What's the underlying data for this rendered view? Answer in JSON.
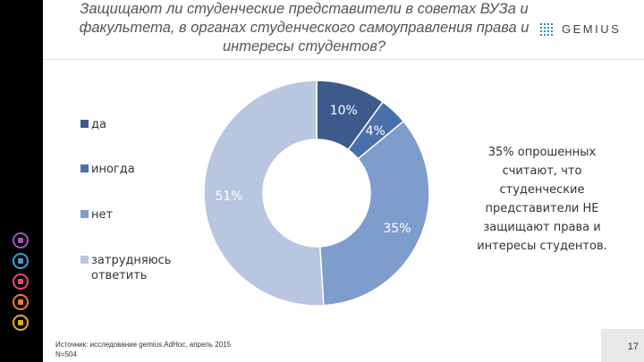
{
  "header": {
    "title": "Защищают ли студенческие представители в советах ВУЗа и факультета, в органах студенческого самоуправления права и интересы студентов?",
    "logo_text": "GEMIUS"
  },
  "sidebar": {
    "icons": [
      "people-icon",
      "lightbulb-icon",
      "cart-icon",
      "wrench-icon",
      "document-icon"
    ]
  },
  "chart_data": {
    "type": "pie",
    "style": "donut",
    "categories": [
      "да",
      "иногда",
      "нет",
      "затрудняюсь ответить"
    ],
    "values": [
      10,
      4,
      35,
      51
    ],
    "data_labels": [
      "10%",
      "4%",
      "35%",
      "51%"
    ],
    "colors": [
      "#3c5a8c",
      "#4a70aa",
      "#7e9ccc",
      "#b8c6df"
    ],
    "legend_position": "left"
  },
  "legend": {
    "items": [
      "да",
      "иногда",
      "нет",
      "затрудняюсь ответить"
    ]
  },
  "annotation": {
    "text": "35% опрошенных считают, что студенческие представители НЕ защищают права и интересы студентов."
  },
  "footer": {
    "source_line1": "Источник: исследование gemius.AdHoc, апрель 2015",
    "source_line2": "N=504",
    "page_number": "17"
  }
}
